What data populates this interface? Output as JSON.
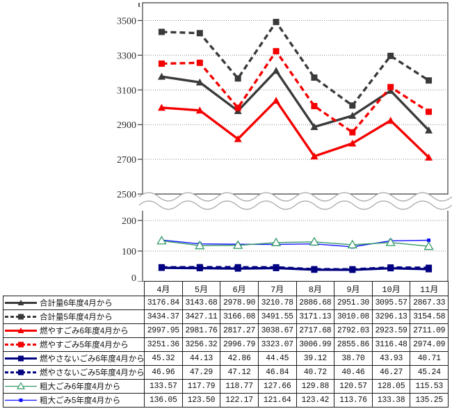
{
  "unit_label": "t",
  "chart_data": {
    "type": "line",
    "title": "",
    "categories": [
      "4月",
      "5月",
      "6月",
      "7月",
      "8月",
      "9月",
      "10月",
      "11月"
    ],
    "grid": "horizontal-dotted",
    "legend_position": "table-left-column",
    "broken_y_axis": {
      "upper": {
        "ylim": [
          2500,
          3600
        ],
        "yticks": [
          2500,
          2700,
          2900,
          3100,
          3300,
          3500
        ]
      },
      "lower": {
        "ylim": [
          0,
          230
        ],
        "yticks": [
          0,
          100,
          200
        ]
      }
    },
    "series": [
      {
        "name": "合計量6年度4月から",
        "axis": "upper",
        "color": "#3a3a3a",
        "line": "solid-thick",
        "marker": "triangle",
        "values": [
          3176.84,
          3143.68,
          2978.9,
          3210.78,
          2886.68,
          2951.3,
          3095.57,
          2867.33
        ]
      },
      {
        "name": "合計量5年度4月から",
        "axis": "upper",
        "color": "#3a3a3a",
        "line": "dashed-thick",
        "marker": "square",
        "values": [
          3434.37,
          3427.11,
          3166.08,
          3491.55,
          3171.13,
          3010.08,
          3296.13,
          3154.58
        ]
      },
      {
        "name": "燃やすごみ6年度4月から",
        "axis": "upper",
        "color": "#f40000",
        "line": "solid-thick",
        "marker": "triangle",
        "values": [
          2997.95,
          2981.76,
          2817.27,
          3038.67,
          2717.68,
          2792.03,
          2923.59,
          2711.09
        ]
      },
      {
        "name": "燃やすごみ5年度4月から",
        "axis": "upper",
        "color": "#f40000",
        "line": "dashed-thick",
        "marker": "square",
        "values": [
          3251.36,
          3256.32,
          2996.79,
          3323.07,
          3006.99,
          2855.86,
          3116.48,
          2974.09
        ]
      },
      {
        "name": "燃やさないごみ6年度4月から",
        "axis": "lower",
        "color": "#000080",
        "line": "solid-thick",
        "marker": "square",
        "values": [
          45.32,
          44.13,
          42.86,
          44.45,
          39.12,
          38.7,
          43.93,
          40.71
        ]
      },
      {
        "name": "燃やさないごみ5年度4月から",
        "axis": "lower",
        "color": "#000080",
        "line": "dashed-thick",
        "marker": "square",
        "values": [
          46.96,
          47.29,
          47.12,
          46.84,
          40.72,
          40.46,
          46.27,
          45.24
        ]
      },
      {
        "name": "粗大ごみ6年度4月から",
        "axis": "lower",
        "color": "#339966",
        "line": "solid-thin",
        "marker": "triangle-open",
        "values": [
          133.57,
          117.79,
          118.77,
          127.66,
          129.88,
          120.57,
          128.05,
          115.53
        ]
      },
      {
        "name": "粗大ごみ5年度4月から",
        "axis": "lower",
        "color": "#0f0fff",
        "line": "solid-thin",
        "marker": "square-small",
        "values": [
          136.05,
          123.5,
          122.17,
          121.64,
          123.42,
          113.76,
          133.38,
          135.25
        ]
      }
    ]
  },
  "table": {
    "corner_header": "",
    "col_headers": [
      "4月",
      "5月",
      "6月",
      "7月",
      "8月",
      "9月",
      "10月",
      "11月"
    ],
    "value_format": "2-decimals"
  },
  "colors": {
    "axis": "#3c3c3c",
    "gridline": "#888888",
    "wave_break": "#a6a6a6",
    "table_border": "#1a1a1a",
    "background": "#ffffff"
  }
}
